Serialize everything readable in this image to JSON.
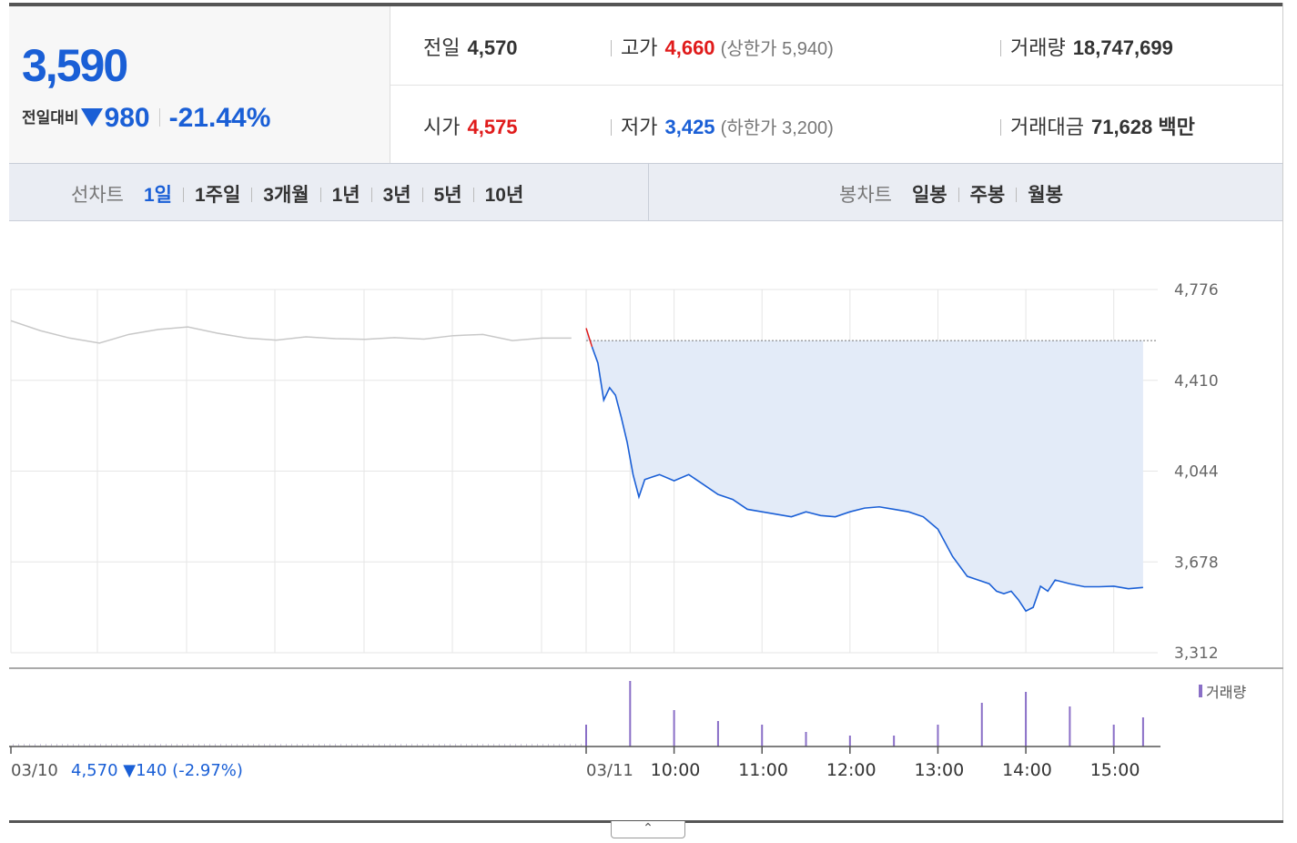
{
  "quote": {
    "price": "3,590",
    "change_label": "전일대비",
    "change_amount": "980",
    "change_percent": "-21.44%"
  },
  "info": {
    "prev_close_label": "전일",
    "prev_close": "4,570",
    "high_label": "고가",
    "high": "4,660",
    "upper_limit": "(상한가 5,940)",
    "volume_label": "거래량",
    "volume": "18,747,699",
    "open_label": "시가",
    "open": "4,575",
    "low_label": "저가",
    "low": "3,425",
    "lower_limit": "(하한가 3,200)",
    "amount_label": "거래대금",
    "amount": "71,628 백만"
  },
  "tabs": {
    "line_title": "선차트",
    "line": [
      "1일",
      "1주일",
      "3개월",
      "1년",
      "3년",
      "5년",
      "10년"
    ],
    "candle_title": "봉차트",
    "candle": [
      "일봉",
      "주봉",
      "월봉"
    ]
  },
  "colors": {
    "down": "#1a5fd6",
    "up": "#e01b1b",
    "volume": "#8a6fc7",
    "fill": "#e3ebf8"
  },
  "collapse_icon": "chevron-up-icon",
  "chart_data": {
    "type": "line",
    "ylim": [
      3312,
      4776
    ],
    "yticks": [
      "4,776",
      "4,410",
      "4,044",
      "3,678",
      "3,312"
    ],
    "prev_close": 4570,
    "prev_day_label": "03/10",
    "prev_day_summary": "4,570 ▼140 (-2.97%)",
    "day_label": "03/11",
    "x_ticks": [
      "10:00",
      "11:00",
      "12:00",
      "13:00",
      "14:00",
      "15:00"
    ],
    "volume_legend": "거래량",
    "series": [
      {
        "name": "03/10",
        "x": [
          "09:00",
          "09:20",
          "09:40",
          "10:00",
          "10:20",
          "10:40",
          "11:00",
          "11:20",
          "11:40",
          "12:00",
          "12:20",
          "12:40",
          "13:00",
          "13:20",
          "13:40",
          "14:00",
          "14:20",
          "14:40",
          "15:00",
          "15:20"
        ],
        "values": [
          4650,
          4610,
          4580,
          4560,
          4595,
          4615,
          4625,
          4600,
          4580,
          4572,
          4585,
          4578,
          4575,
          4582,
          4576,
          4590,
          4595,
          4570,
          4580,
          4580
        ]
      },
      {
        "name": "03/11",
        "x": [
          "09:00",
          "09:04",
          "09:08",
          "09:12",
          "09:16",
          "09:20",
          "09:24",
          "09:28",
          "09:32",
          "09:36",
          "09:40",
          "09:45",
          "09:50",
          "10:00",
          "10:10",
          "10:20",
          "10:30",
          "10:40",
          "10:50",
          "11:00",
          "11:10",
          "11:20",
          "11:30",
          "11:40",
          "11:50",
          "12:00",
          "12:10",
          "12:20",
          "12:30",
          "12:40",
          "12:50",
          "13:00",
          "13:10",
          "13:20",
          "13:30",
          "13:35",
          "13:40",
          "13:45",
          "13:50",
          "13:55",
          "14:00",
          "14:05",
          "14:10",
          "14:15",
          "14:20",
          "14:30",
          "14:40",
          "14:50",
          "15:00",
          "15:10",
          "15:20"
        ],
        "values": [
          4620,
          4545,
          4480,
          4330,
          4380,
          4350,
          4260,
          4160,
          4030,
          3940,
          4010,
          4020,
          4030,
          4005,
          4030,
          3990,
          3950,
          3930,
          3890,
          3880,
          3870,
          3860,
          3880,
          3865,
          3860,
          3880,
          3895,
          3900,
          3890,
          3880,
          3860,
          3810,
          3700,
          3620,
          3600,
          3590,
          3560,
          3550,
          3560,
          3525,
          3480,
          3495,
          3580,
          3560,
          3605,
          3590,
          3578,
          3578,
          3580,
          3570,
          3575
        ]
      }
    ],
    "volume": {
      "x": [
        "09:00",
        "09:30",
        "10:00",
        "10:30",
        "11:00",
        "11:30",
        "12:00",
        "12:30",
        "13:00",
        "13:30",
        "14:00",
        "14:30",
        "15:00",
        "15:20"
      ],
      "values": [
        0.3,
        0.9,
        0.5,
        0.35,
        0.3,
        0.2,
        0.15,
        0.15,
        0.3,
        0.6,
        0.75,
        0.55,
        0.3,
        0.4
      ]
    }
  }
}
